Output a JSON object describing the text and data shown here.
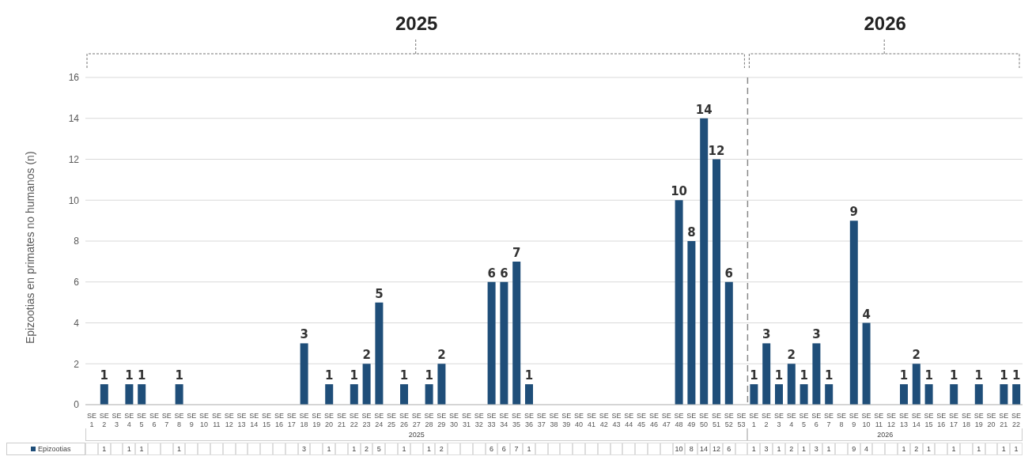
{
  "chart_data": {
    "type": "bar",
    "ylabel": "Epizootias en primates no humanos (n)",
    "categories": [
      "SE 1",
      "SE 2",
      "SE 3",
      "SE 4",
      "SE 5",
      "SE 6",
      "SE 7",
      "SE 8",
      "SE 9",
      "SE 10",
      "SE 11",
      "SE 12",
      "SE 13",
      "SE 14",
      "SE 15",
      "SE 16",
      "SE 17",
      "SE 18",
      "SE 19",
      "SE 20",
      "SE 21",
      "SE 22",
      "SE 23",
      "SE 24",
      "SE 25",
      "SE 26",
      "SE 27",
      "SE 28",
      "SE 29",
      "SE 30",
      "SE 31",
      "SE 32",
      "SE 33",
      "SE 34",
      "SE 35",
      "SE 36",
      "SE 37",
      "SE 38",
      "SE 39",
      "SE 40",
      "SE 41",
      "SE 42",
      "SE 43",
      "SE 44",
      "SE 45",
      "SE 46",
      "SE 47",
      "SE 48",
      "SE 49",
      "SE 50",
      "SE 51",
      "SE 52",
      "SE 53",
      "SE 1",
      "SE 2",
      "SE 3",
      "SE 4",
      "SE 5",
      "SE 6",
      "SE 7",
      "SE 8",
      "SE 9",
      "SE 10",
      "SE 11",
      "SE 12",
      "SE 13",
      "SE 14",
      "SE 15",
      "SE 16",
      "SE 17",
      "SE 18",
      "SE 19",
      "SE 20",
      "SE 21",
      "SE 22"
    ],
    "series": [
      {
        "name": "Epizootias",
        "color": "#1f4e79",
        "value_labels": [
          null,
          "1",
          null,
          "1",
          "1",
          null,
          null,
          "1",
          null,
          null,
          null,
          null,
          null,
          null,
          null,
          null,
          null,
          "3",
          null,
          "1",
          null,
          "1",
          "2",
          "5",
          null,
          "1",
          null,
          "1",
          "2",
          null,
          null,
          null,
          "6",
          "6",
          "7",
          "1",
          null,
          null,
          null,
          null,
          null,
          null,
          null,
          null,
          null,
          null,
          null,
          "10",
          "8",
          "14",
          "12",
          "6",
          null,
          "1",
          "3",
          "1",
          "2",
          "1",
          "3",
          "1",
          null,
          "9",
          "4",
          null,
          null,
          "1",
          "2",
          "1",
          null,
          "1",
          null,
          "1",
          null,
          "1",
          "1"
        ],
        "values": [
          null,
          1,
          null,
          1,
          1,
          null,
          null,
          1,
          null,
          null,
          null,
          null,
          null,
          null,
          null,
          null,
          null,
          3,
          null,
          1,
          null,
          1,
          2,
          5,
          null,
          1,
          null,
          1,
          2,
          null,
          null,
          null,
          6,
          6,
          7,
          1,
          null,
          null,
          null,
          null,
          null,
          null,
          null,
          null,
          null,
          null,
          null,
          10,
          8,
          14,
          12,
          6,
          null,
          1,
          3,
          1,
          2,
          1,
          3,
          1,
          null,
          9,
          4,
          null,
          null,
          1,
          2,
          1,
          null,
          1,
          null,
          1,
          null,
          1,
          1
        ]
      }
    ],
    "annotations": [
      "2025",
      "2026"
    ],
    "ref_lines": [
      {
        "axis": "x",
        "value": "SE 53",
        "color": "#888888",
        "line_style": "dashed"
      }
    ],
    "ylim": [
      0,
      16
    ],
    "yticks": [
      0,
      2,
      4,
      6,
      8,
      10,
      12,
      14,
      16
    ],
    "grid": "y",
    "data_labels": true,
    "legend": "bottom left"
  }
}
